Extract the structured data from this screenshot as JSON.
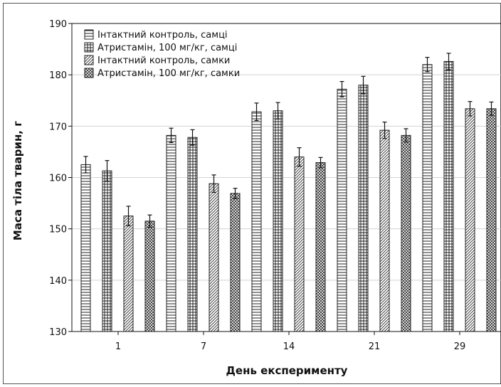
{
  "chart_data": {
    "type": "bar",
    "xlabel": "День експерименту",
    "ylabel": "Маса тіла тварин, г",
    "ylim": [
      130,
      190
    ],
    "yticks": [
      130,
      140,
      150,
      160,
      170,
      180,
      190
    ],
    "categories": [
      "1",
      "7",
      "14",
      "21",
      "29"
    ],
    "grid": true,
    "legend_position": "top-left",
    "series": [
      {
        "name": "Інтактний контроль, самці",
        "pattern": "horizontal-lines",
        "values": [
          162.5,
          168.2,
          172.8,
          177.2,
          182.0
        ],
        "errors": [
          1.6,
          1.4,
          1.7,
          1.5,
          1.4
        ]
      },
      {
        "name": "Атристамін, 100 мг/кг, самці",
        "pattern": "grid",
        "values": [
          161.3,
          167.8,
          173.0,
          178.0,
          182.6
        ],
        "errors": [
          2.0,
          1.5,
          1.6,
          1.7,
          1.6
        ]
      },
      {
        "name": "Інтактний контроль, самки",
        "pattern": "diagonal-lines",
        "values": [
          152.5,
          158.8,
          164.0,
          169.2,
          173.4
        ],
        "errors": [
          1.9,
          1.7,
          1.8,
          1.6,
          1.4
        ]
      },
      {
        "name": "Атристамін, 100 мг/кг, самки",
        "pattern": "crosshatch",
        "values": [
          151.5,
          156.9,
          162.9,
          168.2,
          173.4
        ],
        "errors": [
          1.2,
          1.0,
          1.0,
          1.3,
          1.3
        ]
      }
    ],
    "colors": {
      "bar_fill": "#ffffff",
      "stroke": "#222222",
      "grid": "#d3d3d3"
    }
  }
}
